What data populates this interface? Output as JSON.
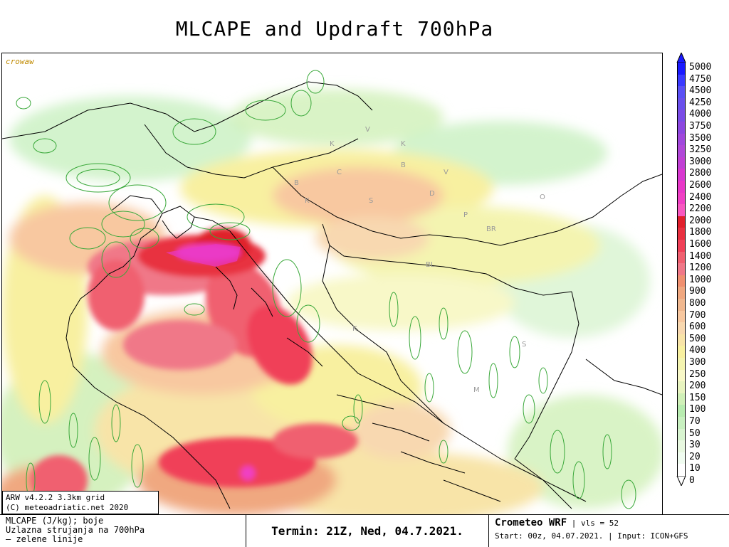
{
  "title": "MLCAPE and Updraft 700hPa",
  "corner_label": "crowaw",
  "credit": {
    "line1": "ARW v4.2.2 3.3km grid",
    "line2": "(C) meteoadriatic.net 2020"
  },
  "footer": {
    "left_line1": "MLCAPE (J/kg); boje",
    "left_line2": "Uzlazna strujanja na 700hPa",
    "left_line3": "— zelene linije",
    "termin": "Termin: 21Z, Ned, 04.7.2021.",
    "brand": "Crometeo WRF",
    "vls": "vls = 52",
    "start": "Start: 00z, 04.07.2021.",
    "input": "Input: ICON+GFS"
  },
  "legend": {
    "levels": [
      "5000",
      "4750",
      "4500",
      "4250",
      "4000",
      "3750",
      "3500",
      "3250",
      "3000",
      "2800",
      "2600",
      "2400",
      "2200",
      "2000",
      "1800",
      "1600",
      "1400",
      "1200",
      "1000",
      "900",
      "800",
      "700",
      "600",
      "500",
      "400",
      "300",
      "250",
      "200",
      "150",
      "100",
      "70",
      "50",
      "30",
      "20",
      "10",
      "0"
    ],
    "colors": [
      "#1a1aff",
      "#3a3aff",
      "#5a50f5",
      "#6a50ec",
      "#7a4ce6",
      "#8c48e0",
      "#a048dc",
      "#b048d8",
      "#c040d4",
      "#d838d0",
      "#e838c8",
      "#f040c4",
      "#f858c0",
      "#e0202c",
      "#e83040",
      "#f04058",
      "#f06070",
      "#f07888",
      "#f09070",
      "#f0a880",
      "#f0b890",
      "#f8c8a0",
      "#f8d8b0",
      "#f8e4a8",
      "#f8f0a0",
      "#f4f4b0",
      "#f8f8c8",
      "#e8f4c0",
      "#d0f0b8",
      "#b8ecb0",
      "#c8f0c0",
      "#d8f4d0",
      "#e8f8e0",
      "#f0fcf0",
      "#ffffff",
      "#ffffff"
    ]
  },
  "map": {
    "region_letters": [
      "K",
      "V",
      "K",
      "B",
      "V",
      "K",
      "S",
      "D",
      "P",
      "BL",
      "S",
      "M",
      "K",
      "BR",
      "O",
      "C",
      "B"
    ]
  }
}
